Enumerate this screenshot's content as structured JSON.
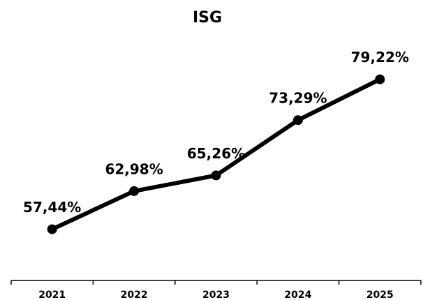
{
  "chart_data": {
    "type": "line",
    "title": "ISG",
    "categories": [
      "2021",
      "2022",
      "2023",
      "2024",
      "2025"
    ],
    "series": [
      {
        "name": "ISG",
        "color": "#000000",
        "values": [
          57.44,
          62.98,
          65.26,
          73.29,
          79.22
        ],
        "value_labels": [
          "57,44%",
          "62,98%",
          "65,26%",
          "73,29%",
          "79,22%"
        ]
      }
    ],
    "ylim": [
      50,
      80
    ]
  }
}
